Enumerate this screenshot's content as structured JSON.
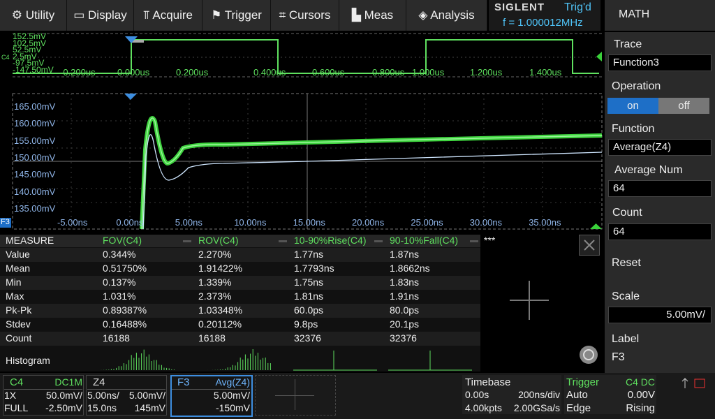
{
  "menu": [
    "Utility",
    "Display",
    "Acquire",
    "Trigger",
    "Cursors",
    "Meas",
    "Analysis"
  ],
  "status": {
    "brand": "SIGLENT",
    "trigger_state": "Trig'd",
    "frequency": "f = 1.000012MHz"
  },
  "side_panel": {
    "title": "MATH",
    "trace": {
      "label": "Trace",
      "value": "Function3"
    },
    "operation": {
      "label": "Operation",
      "on": "on",
      "off": "off"
    },
    "function": {
      "label": "Function",
      "value": "Average(Z4)"
    },
    "average_num": {
      "label": "Average Num",
      "value": "64"
    },
    "count": {
      "label": "Count",
      "value": "64"
    },
    "reset": "Reset",
    "scale": {
      "label": "Scale",
      "value": "5.00mV/"
    },
    "trace_label": {
      "label": "Label",
      "value": "F3"
    }
  },
  "overview": {
    "channel": "C4",
    "y_labels": [
      "152.5mV",
      "102.5mV",
      "52.5mV",
      "2.5mV",
      "-97.5mV",
      "-147.50mV"
    ],
    "x_labels": [
      "-0.200us",
      "0.000us",
      "0.200us",
      "0.400us",
      "0.600us",
      "0.800us",
      "1.000us",
      "1.200us",
      "1.400us"
    ]
  },
  "main_plot": {
    "trace": "F3",
    "y_labels": [
      "165.00mV",
      "160.00mV",
      "155.00mV",
      "150.00mV",
      "145.00mV",
      "140.00mV",
      "135.00mV"
    ],
    "x_labels": [
      "-5.00ns",
      "0.00ns",
      "5.00ns",
      "10.00ns",
      "15.00ns",
      "20.00ns",
      "25.00ns",
      "30.00ns",
      "35.00ns"
    ]
  },
  "measure": {
    "header": [
      "MEASURE",
      "FOV(C4)",
      "ROV(C4)",
      "10-90%Rise(C4)",
      "90-10%Fall(C4)",
      "***"
    ],
    "rows": [
      [
        "Value",
        "0.344%",
        "2.270%",
        "1.77ns",
        "1.87ns"
      ],
      [
        "Mean",
        "0.51750%",
        "1.91422%",
        "1.7793ns",
        "1.8662ns"
      ],
      [
        "Min",
        "0.137%",
        "1.339%",
        "1.75ns",
        "1.83ns"
      ],
      [
        "Max",
        "1.031%",
        "2.373%",
        "1.81ns",
        "1.91ns"
      ],
      [
        "Pk-Pk",
        "0.89387%",
        "1.03348%",
        "60.0ps",
        "80.0ps"
      ],
      [
        "Stdev",
        "0.16488%",
        "0.20112%",
        "9.8ps",
        "20.1ps"
      ],
      [
        "Count",
        "16188",
        "16188",
        "32376",
        "32376"
      ]
    ],
    "histogram": "Histogram"
  },
  "channels": [
    {
      "name": "C4",
      "coupling": "DC1M",
      "rows": [
        [
          "1X",
          "50.0mV/"
        ],
        [
          "FULL",
          "-2.50mV"
        ]
      ]
    },
    {
      "name": "Z4",
      "rows": [
        [
          "5.00ns/",
          "5.00mV/"
        ],
        [
          "15.0ns",
          "145mV"
        ]
      ]
    },
    {
      "name": "F3",
      "coupling": "Avg(Z4)",
      "rows": [
        [
          "5.00mV/"
        ],
        [
          "-150mV"
        ]
      ]
    }
  ],
  "timebase": {
    "title": "Timebase",
    "rows": [
      [
        "0.00s",
        "200ns/div"
      ],
      [
        "4.00kpts",
        "2.00GSa/s"
      ]
    ]
  },
  "trigger": {
    "title": "Trigger",
    "source": "C4 DC",
    "rows": [
      [
        "Auto",
        "0.00V"
      ],
      [
        "Edge",
        "Rising"
      ]
    ]
  }
}
